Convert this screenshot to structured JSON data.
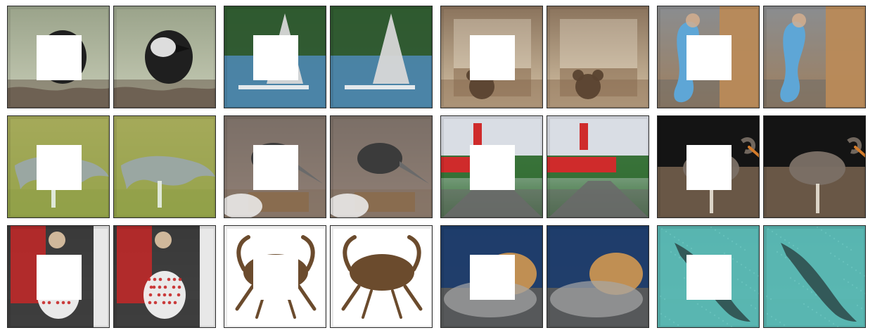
{
  "figure": {
    "rows": 3,
    "groups_per_row": 4,
    "panels": [
      {
        "subject": "chickadee-on-branch",
        "colors": {
          "bg1": "#9aa38a",
          "bg2": "#c8cdb7",
          "main": "#1f1f1f",
          "accent": "#f2f2f2",
          "ground": "#6a5c4f"
        }
      },
      {
        "subject": "sailboat-on-water",
        "colors": {
          "bg1": "#2f5a2f",
          "bg2": "#5a8a9e",
          "main": "#d7d7d7",
          "accent": "#4d7ea6",
          "ground": "#4b84a8"
        }
      },
      {
        "subject": "nursery-with-teddy-bear",
        "colors": {
          "bg1": "#8a735c",
          "bg2": "#d6c4a7",
          "main": "#5a4330",
          "accent": "#efe6d5",
          "ground": "#8b6d52"
        }
      },
      {
        "subject": "blue-stocking-and-door",
        "colors": {
          "bg1": "#9aa0a6",
          "bg2": "#b98a58",
          "main": "#5ea6d6",
          "accent": "#e9e2d5",
          "ground": "#6d6b66"
        }
      },
      {
        "subject": "dog-in-grass",
        "colors": {
          "bg1": "#b8b36a",
          "bg2": "#95a34c",
          "main": "#9aa7a7",
          "accent": "#e8efe8",
          "ground": "#879a3e"
        }
      },
      {
        "subject": "junco-on-nest",
        "colors": {
          "bg1": "#7b6f67",
          "bg2": "#b8a090",
          "main": "#3b3b3b",
          "accent": "#f0f0f0",
          "ground": "#8a6b4c"
        }
      },
      {
        "subject": "red-lightship",
        "colors": {
          "bg1": "#d9dde4",
          "bg2": "#2f6b2f",
          "main": "#cf2b2b",
          "accent": "#7d7d7d",
          "ground": "#6a6a6a"
        }
      },
      {
        "subject": "stork-on-gravel",
        "colors": {
          "bg1": "#141414",
          "bg2": "#3c3228",
          "main": "#7b7066",
          "accent": "#d47c2b",
          "ground": "#6e5b49"
        }
      },
      {
        "subject": "child-in-floral-dress",
        "colors": {
          "bg1": "#3a3a3a",
          "bg2": "#8a8a8a",
          "main": "#c62828",
          "accent": "#f3f3f3",
          "ground": "#4a4a4a"
        }
      },
      {
        "subject": "crab-on-white",
        "colors": {
          "bg1": "#ffffff",
          "bg2": "#ffffff",
          "main": "#6b4b2d",
          "accent": "#2d2d2d",
          "ground": "#ffffff"
        }
      },
      {
        "subject": "puppy-on-sweater",
        "colors": {
          "bg1": "#1f3d6b",
          "bg2": "#5a5a5a",
          "main": "#c99352",
          "accent": "#a7a7a7",
          "ground": "#6f6f6f"
        }
      },
      {
        "subject": "fish-on-seabed",
        "colors": {
          "bg1": "#2e8b8f",
          "bg2": "#5bb7b2",
          "main": "#2f4f4f",
          "accent": "#7fd3cf",
          "ground": "#2e7f80"
        }
      }
    ]
  }
}
